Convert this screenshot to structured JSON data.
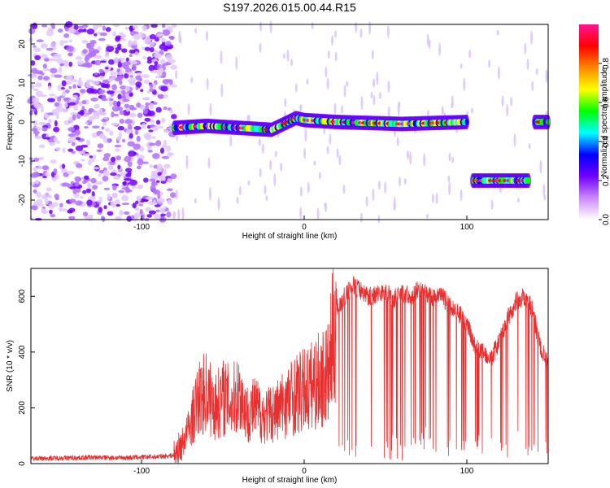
{
  "title": "S197.2026.015.00.44.R15",
  "chart_data": [
    {
      "type": "heatmap",
      "panel": "spectrogram",
      "xlabel": "Height of straight line (km)",
      "ylabel": "Frequency (Hz)",
      "xlim": [
        -168,
        150
      ],
      "ylim": [
        -25,
        25
      ],
      "xticks": [
        -100,
        0,
        100
      ],
      "xtick_labels": [
        "-100",
        "0",
        "100"
      ],
      "yticks": [
        -20,
        -10,
        0,
        10,
        20
      ],
      "ytick_labels": [
        "-20",
        "-10",
        "0",
        "10",
        "20"
      ],
      "colorbar": {
        "label": "Normalized spectral amplitude",
        "range": [
          0,
          1
        ],
        "ticks": [
          0.0,
          0.2,
          0.4,
          0.6,
          0.8
        ],
        "tick_labels": [
          "0.0",
          "0.2",
          "0.4",
          "0.6",
          "0.8"
        ],
        "colors": [
          "#ffffff",
          "#cc88ff",
          "#7000ff",
          "#0000ff",
          "#00ffff",
          "#00ff00",
          "#ffff00",
          "#ff8800",
          "#ff0000",
          "#ff1493"
        ]
      },
      "signal_track": [
        {
          "x": -80,
          "freq": -1.5
        },
        {
          "x": -60,
          "freq": -1
        },
        {
          "x": -40,
          "freq": -1.5
        },
        {
          "x": -20,
          "freq": -2
        },
        {
          "x": -10,
          "freq": 0
        },
        {
          "x": -5,
          "freq": 1
        },
        {
          "x": 0,
          "freq": 0.5
        },
        {
          "x": 20,
          "freq": 0
        },
        {
          "x": 60,
          "freq": -0.5
        },
        {
          "x": 100,
          "freq": 0
        },
        {
          "x": 103,
          "freq": -15
        },
        {
          "x": 138,
          "freq": -15
        },
        {
          "x": 141,
          "freq": 0
        },
        {
          "x": 150,
          "freq": 0
        }
      ]
    },
    {
      "type": "line",
      "panel": "snr",
      "xlabel": "Height of straight line (km)",
      "ylabel": "SNR (10 * v/v)",
      "xlim": [
        -168,
        150
      ],
      "ylim": [
        0,
        700
      ],
      "xticks": [
        -100,
        0,
        100
      ],
      "xtick_labels": [
        "-100",
        "0",
        "100"
      ],
      "yticks": [
        0,
        200,
        400,
        600
      ],
      "ytick_labels": [
        "0",
        "200",
        "400",
        "600"
      ],
      "color": "#e83030",
      "series": [
        {
          "name": "SNR",
          "x": [
            -168,
            -150,
            -130,
            -110,
            -90,
            -80,
            -75,
            -70,
            -65,
            -60,
            -55,
            -50,
            -45,
            -40,
            -35,
            -30,
            -25,
            -20,
            -15,
            -10,
            -5,
            0,
            5,
            10,
            15,
            20,
            25,
            30,
            35,
            40,
            45,
            50,
            55,
            60,
            65,
            70,
            75,
            80,
            85,
            90,
            95,
            100,
            105,
            110,
            115,
            120,
            125,
            130,
            135,
            140,
            145,
            150
          ],
          "y": [
            18,
            20,
            22,
            21,
            25,
            30,
            70,
            140,
            230,
            260,
            200,
            240,
            220,
            250,
            180,
            200,
            170,
            180,
            200,
            230,
            250,
            260,
            280,
            300,
            320,
            560,
            600,
            640,
            620,
            600,
            610,
            620,
            590,
            610,
            600,
            620,
            610,
            590,
            600,
            560,
            540,
            500,
            420,
            400,
            380,
            440,
            520,
            580,
            600,
            560,
            420,
            350
          ]
        }
      ]
    }
  ]
}
